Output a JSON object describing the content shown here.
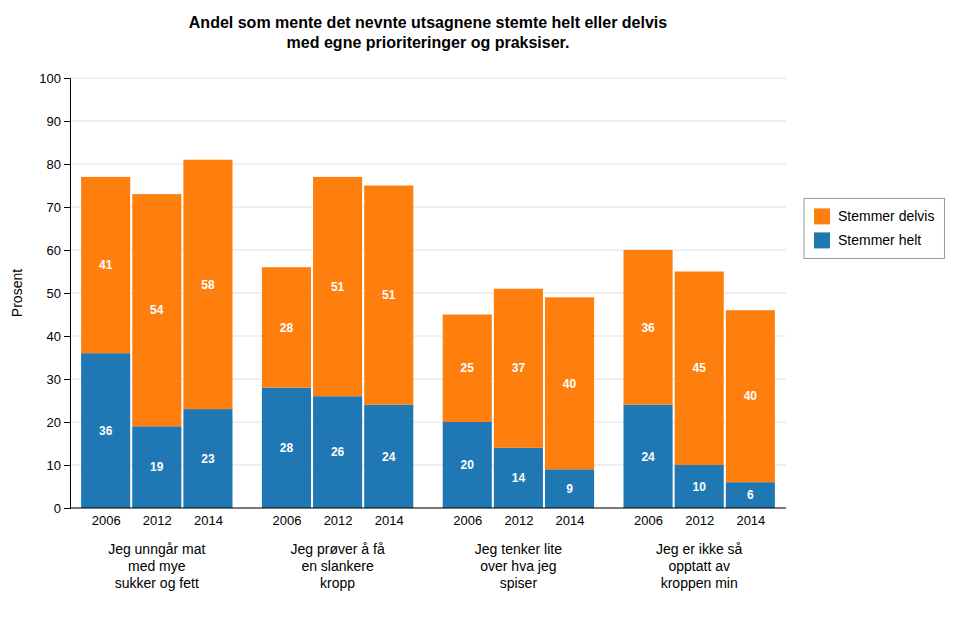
{
  "chart_data": {
    "type": "bar",
    "stacked": true,
    "title": "Andel som mente det nevnte utsagnene stemte helt eller delvis\nmed egne prioriteringer og praksiser.",
    "y_label": "Prosent",
    "categories": [
      "2006",
      "2012",
      "2014",
      "2006",
      "2012",
      "2014",
      "2006",
      "2012",
      "2014",
      "2006",
      "2012",
      "2014"
    ],
    "group_labels": [
      "Jeg unngår mat\nmed mye\nsukker og fett",
      "Jeg prøver å få\nen slankere\nkropp",
      "Jeg tenker lite\nover hva jeg\nspiser",
      "Jeg er ikke så\nopptatt av\nkroppen min"
    ],
    "series": [
      {
        "name": "Stemmer helt",
        "values": [
          36,
          19,
          23,
          28,
          26,
          24,
          20,
          14,
          9,
          24,
          10,
          6
        ]
      },
      {
        "name": "Stemmer delvis",
        "values": [
          41,
          54,
          58,
          28,
          51,
          51,
          25,
          37,
          40,
          36,
          45,
          40
        ]
      }
    ],
    "ylim": [
      0,
      100
    ],
    "yticks": [
      0,
      10,
      20,
      30,
      40,
      50,
      60,
      70,
      80,
      90,
      100
    ],
    "grid": true,
    "legend": "right",
    "data_labels": true
  }
}
